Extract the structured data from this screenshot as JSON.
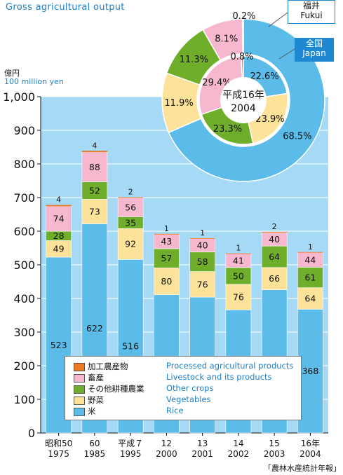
{
  "title": "Gross agricultural output",
  "unit_jp": "億円",
  "unit_en": "100 million yen",
  "source": "「農林水産統計年報」",
  "colors": {
    "plot_bg": "#a6d9f5",
    "rice": "#5bbcea",
    "vegetables": "#fde29a",
    "other_crops": "#6fae2a",
    "livestock": "#f6b7cf",
    "processed": "#ee7722",
    "accent": "#1f7fc4"
  },
  "legend": [
    {
      "key": "processed",
      "jp": "加工農産物",
      "en": "Processed agricultural products"
    },
    {
      "key": "livestock",
      "jp": "畜産",
      "en": "Livestock and its products"
    },
    {
      "key": "other_crops",
      "jp": "その他耕種農業",
      "en": "Other crops"
    },
    {
      "key": "vegetables",
      "jp": "野菜",
      "en": "Vegetables"
    },
    {
      "key": "rice",
      "jp": "米",
      "en": "Rice"
    }
  ],
  "donut": {
    "center_line1": "平成16年",
    "center_line2": "2004",
    "fukui_label_jp": "福井",
    "fukui_label_en": "Fukui",
    "japan_label_jp": "全国",
    "japan_label_en": "Japan"
  },
  "chart_data": [
    {
      "type": "bar",
      "stacked": true,
      "categories": [
        "昭和50 1975",
        "60 1985",
        "平成７ 1995",
        "12 2000",
        "13 2001",
        "14 2002",
        "15 2003",
        "16年 2004"
      ],
      "x_label_lines": [
        [
          "昭和50",
          "1975"
        ],
        [
          "60",
          "1985"
        ],
        [
          "平成７",
          "1995"
        ],
        [
          "12",
          "2000"
        ],
        [
          "13",
          "2001"
        ],
        [
          "14",
          "2002"
        ],
        [
          "15",
          "2003"
        ],
        [
          "16年",
          "2004"
        ]
      ],
      "series": [
        {
          "name": "米",
          "key": "rice",
          "values": [
            523,
            622,
            516,
            411,
            404,
            366,
            426,
            368
          ]
        },
        {
          "name": "野菜",
          "key": "vegetables",
          "values": [
            49,
            73,
            92,
            80,
            76,
            76,
            66,
            64
          ]
        },
        {
          "name": "その他耕種農業",
          "key": "other_crops",
          "values": [
            28,
            52,
            35,
            57,
            58,
            50,
            64,
            61
          ]
        },
        {
          "name": "畜産",
          "key": "livestock",
          "values": [
            74,
            88,
            56,
            43,
            40,
            41,
            40,
            44
          ]
        },
        {
          "name": "加工農産物",
          "key": "processed",
          "values": [
            4,
            4,
            2,
            1,
            1,
            1,
            2,
            1
          ]
        }
      ],
      "ylim": [
        0,
        1000
      ],
      "yticks": [
        "0",
        "100",
        "200",
        "300",
        "400",
        "500",
        "600",
        "700",
        "800",
        "900",
        "1,000"
      ],
      "grid": true,
      "legend_position": "bottom-left"
    },
    {
      "type": "pie",
      "name": "福井 Fukui",
      "ring": "outer",
      "labels": [
        "米",
        "野菜",
        "その他耕種農業",
        "畜産",
        "加工農産物"
      ],
      "values": [
        68.5,
        11.9,
        11.3,
        8.1,
        0.2
      ],
      "value_labels": [
        "68.5%",
        "11.9%",
        "11.3%",
        "8.1%",
        "0.2%"
      ]
    },
    {
      "type": "pie",
      "name": "全国 Japan",
      "ring": "inner",
      "labels": [
        "米",
        "野菜",
        "その他耕種農業",
        "畜産",
        "加工農産物"
      ],
      "values": [
        22.6,
        23.9,
        23.3,
        29.4,
        0.8
      ],
      "value_labels": [
        "22.6%",
        "23.9%",
        "23.3%",
        "29.4%",
        "0.8%"
      ]
    }
  ]
}
